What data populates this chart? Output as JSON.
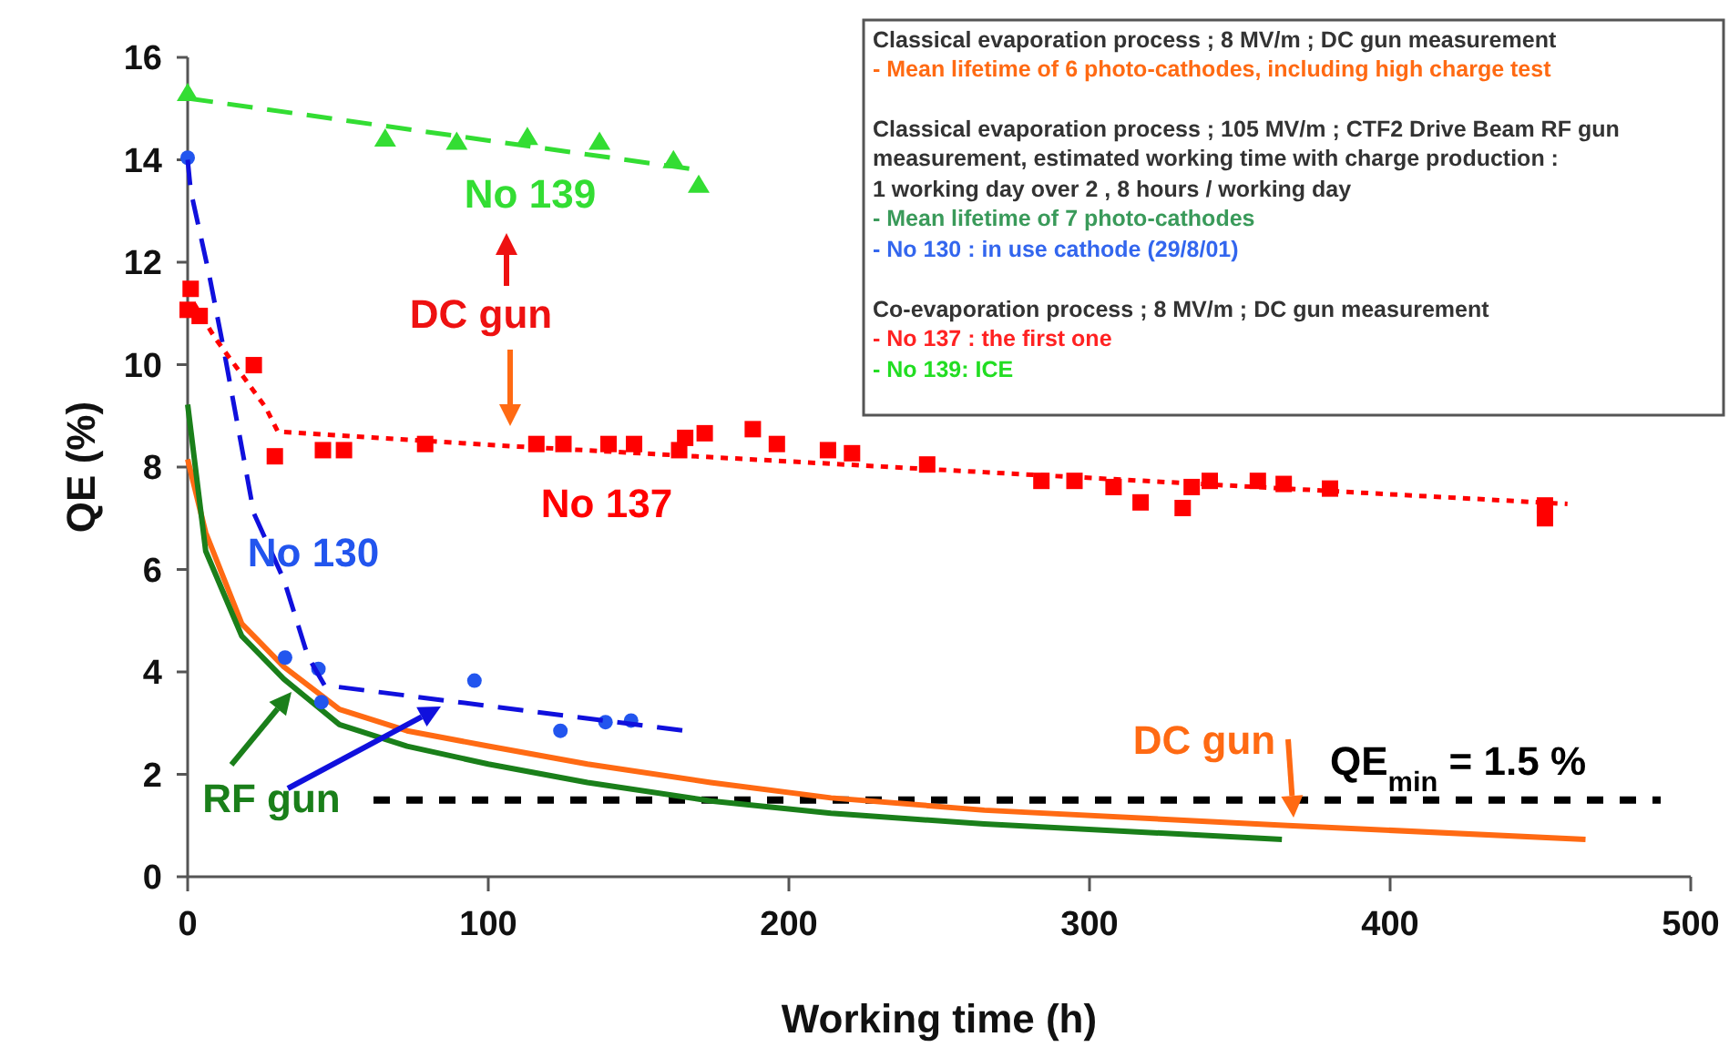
{
  "chart_data": {
    "type": "line",
    "xlabel": "Working time (h)",
    "ylabel": "QE (%)",
    "xlim": [
      0,
      500
    ],
    "ylim": [
      0,
      16
    ],
    "xticks": [
      0,
      100,
      200,
      300,
      400,
      500
    ],
    "yticks": [
      0,
      2,
      4,
      6,
      8,
      10,
      12,
      14,
      16
    ],
    "grid": false,
    "series": [
      {
        "name": "DC gun",
        "color": "#ff6a13",
        "line_style": "solid",
        "x": [
          0,
          6,
          18,
          32,
          50.5,
          73,
          100,
          133,
          174,
          214,
          265,
          366,
          465
        ],
        "values": [
          8.15,
          6.72,
          4.94,
          4.1,
          3.27,
          2.85,
          2.55,
          2.2,
          1.84,
          1.54,
          1.3,
          1.0,
          0.73
        ]
      },
      {
        "name": "RF gun",
        "color": "#1a7f1a",
        "line_style": "solid",
        "x": [
          0,
          6,
          18,
          32,
          50.5,
          73,
          100,
          133,
          174,
          214,
          265,
          364
        ],
        "values": [
          9.22,
          6.36,
          4.7,
          3.86,
          2.97,
          2.55,
          2.2,
          1.84,
          1.48,
          1.24,
          1.03,
          0.73
        ]
      },
      {
        "name": "No 130",
        "color": "#2255ee",
        "type": "scatter",
        "marker": "circle",
        "x": [
          0,
          32.4,
          43.5,
          44.5,
          95.4,
          124,
          139,
          147.5
        ],
        "values": [
          14.04,
          4.28,
          4.06,
          3.41,
          3.83,
          2.85,
          3.02,
          3.05
        ]
      },
      {
        "color": "#1010dd",
        "line_style": "dashed",
        "x": [
          0,
          1,
          7,
          12,
          17,
          22,
          32,
          40,
          45.5,
          165.7
        ],
        "values": [
          14.0,
          13.4,
          11.8,
          10.3,
          8.7,
          7.1,
          5.8,
          4.3,
          3.74,
          2.85
        ]
      },
      {
        "name": "No 137",
        "color": "#ff0000",
        "type": "scatter",
        "marker": "square",
        "x": [
          0,
          1,
          4,
          22,
          29,
          45,
          52,
          79,
          116,
          125,
          140,
          148.5,
          163.5,
          165.5,
          172,
          188,
          196,
          213,
          221,
          246,
          284,
          295,
          308,
          317,
          331,
          334,
          340,
          356,
          364.6,
          380,
          451.5,
          451.5
        ],
        "values": [
          11.07,
          11.48,
          10.95,
          9.99,
          8.21,
          8.33,
          8.33,
          8.45,
          8.45,
          8.45,
          8.45,
          8.45,
          8.33,
          8.57,
          8.66,
          8.74,
          8.45,
          8.33,
          8.27,
          8.05,
          7.73,
          7.73,
          7.61,
          7.31,
          7.2,
          7.61,
          7.73,
          7.73,
          7.67,
          7.58,
          7.0,
          7.25
        ]
      },
      {
        "color": "#ff0000",
        "line_style": "dotted",
        "x": [
          2,
          9,
          26,
          30,
          107,
          265,
          459
        ],
        "values": [
          11.2,
          10.53,
          9.16,
          8.69,
          8.41,
          7.9,
          7.28
        ]
      },
      {
        "name": "No 139",
        "color": "#33dd33",
        "type": "scatter",
        "marker": "triangle",
        "x": [
          0,
          65.7,
          89.5,
          113,
          137,
          161.6,
          170
        ],
        "values": [
          15.29,
          14.4,
          14.34,
          14.43,
          14.34,
          13.98,
          13.5
        ]
      },
      {
        "color": "#33dd33",
        "line_style": "dashed",
        "x": [
          0,
          170
        ],
        "values": [
          15.2,
          13.8
        ]
      }
    ],
    "ref_lines": [
      {
        "axis": "y",
        "value": 1.5,
        "label": "QE$_{min}$ = 1.5 %",
        "color": "#000000",
        "line_style": "dotted"
      }
    ],
    "annotations": [
      "DC gun",
      "Classical evaporation process ;  8 MV/m ; DC gun measurement",
      "- Mean lifetime of 6 photo-cathodes, including high charge test",
      "Classical evaporation process ; 105 MV/m ; CTF2 Drive Beam RF gun",
      "measurement, estimated working time with charge production :",
      "1 working day over 2 , 8 hours / working day",
      "- Mean lifetime of 7 photo-cathodes",
      "- No 130 : in use cathode (29/8/01)",
      "Co-evaporation process ; 8 MV/m ; DC gun measurement",
      "- No 137 : the first one",
      "- No 139: ICE"
    ]
  }
}
